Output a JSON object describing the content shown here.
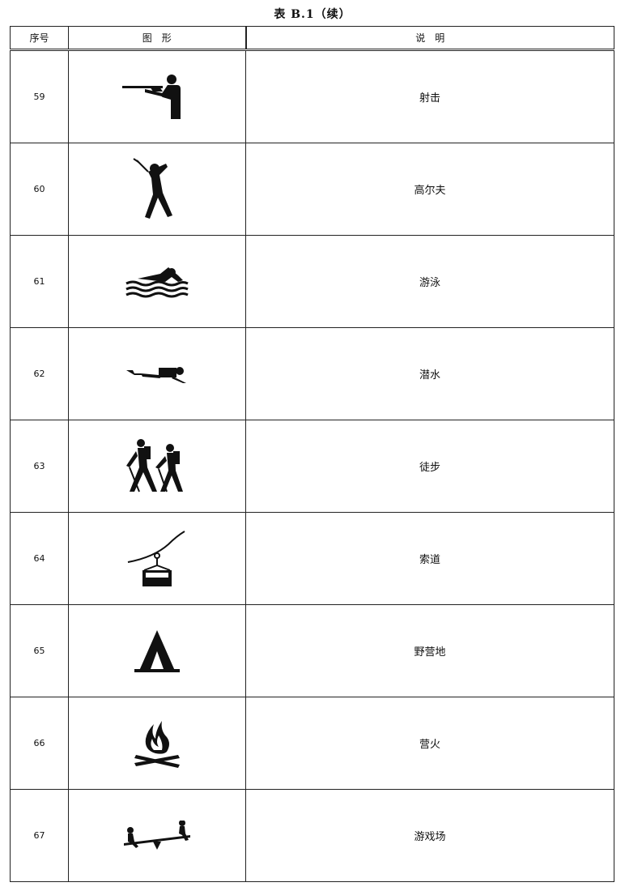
{
  "caption": "表 B.1（续）",
  "headers": [
    "序号",
    "图　形",
    "说　明"
  ],
  "rows": [
    {
      "no": "59",
      "icon": "shooting-icon",
      "desc": "射击"
    },
    {
      "no": "60",
      "icon": "golf-icon",
      "desc": "高尔夫"
    },
    {
      "no": "61",
      "icon": "swimming-icon",
      "desc": "游泳"
    },
    {
      "no": "62",
      "icon": "diving-icon",
      "desc": "潜水"
    },
    {
      "no": "63",
      "icon": "hiking-icon",
      "desc": "徒步"
    },
    {
      "no": "64",
      "icon": "cable-car-icon",
      "desc": "索道"
    },
    {
      "no": "65",
      "icon": "camping-tent-icon",
      "desc": "野营地"
    },
    {
      "no": "66",
      "icon": "campfire-icon",
      "desc": "营火"
    },
    {
      "no": "67",
      "icon": "playground-seesaw-icon",
      "desc": "游戏场"
    }
  ]
}
